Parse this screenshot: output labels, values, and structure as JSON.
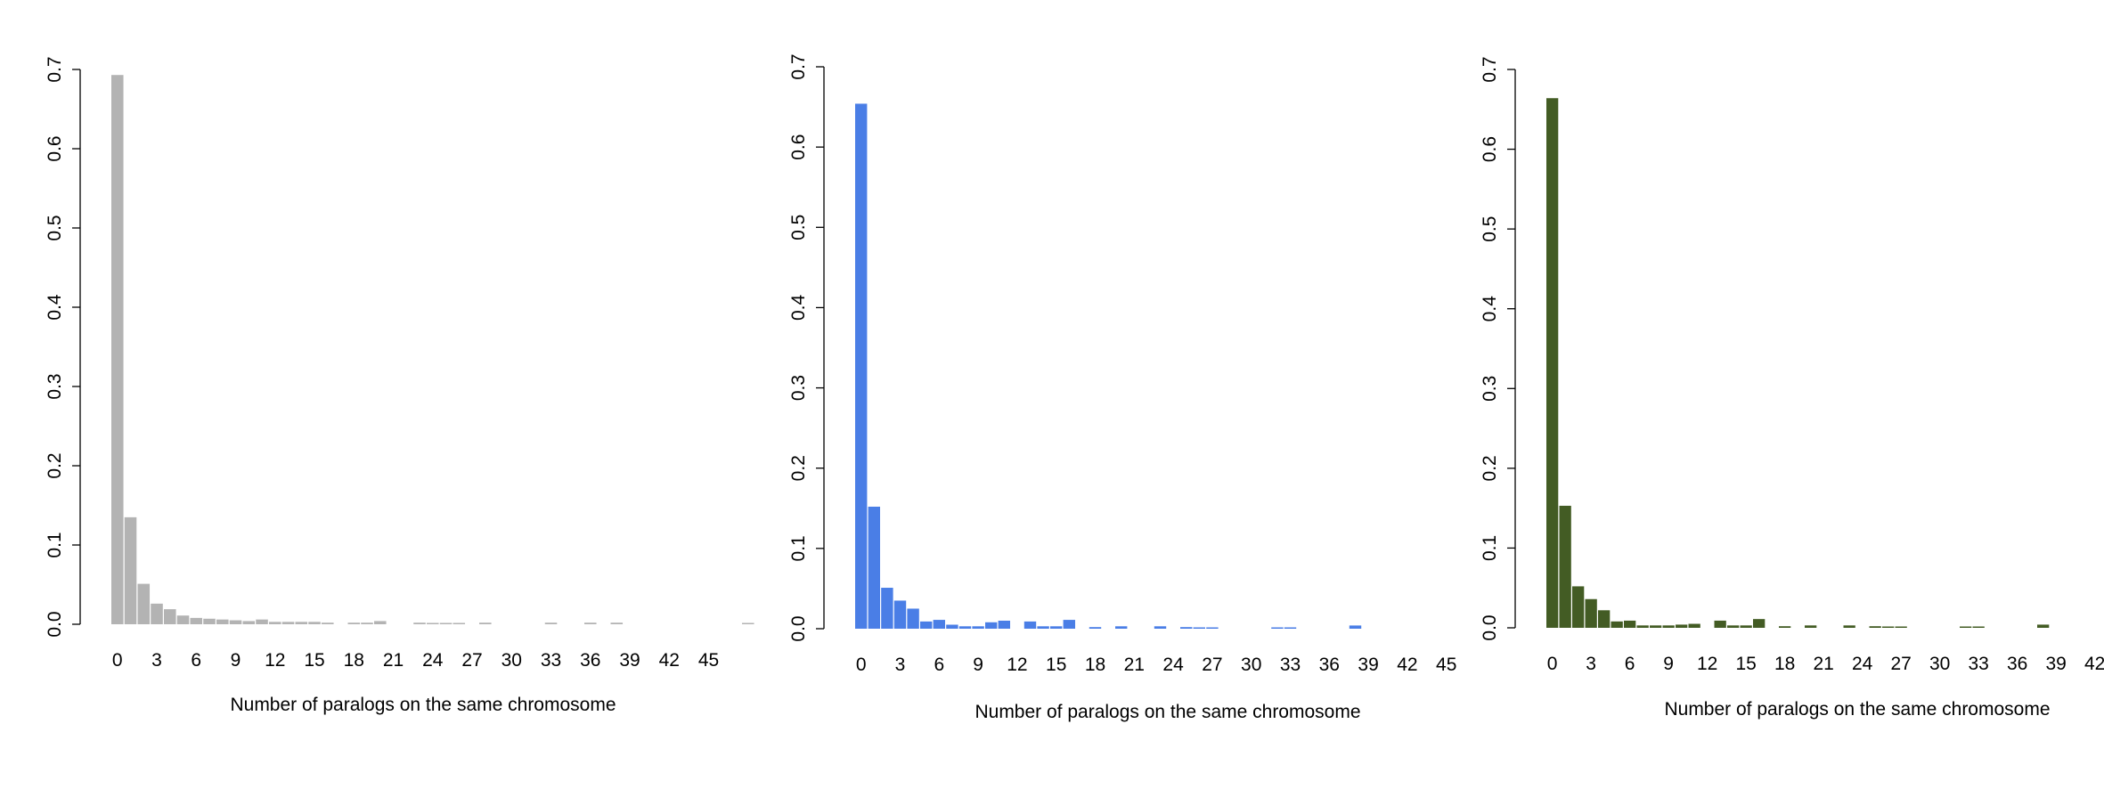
{
  "chart_data": [
    {
      "type": "bar",
      "xlabel": "Number of paralogs on the same chromosome",
      "ylabel": "",
      "color": "#b3b3b3",
      "ylim": [
        0,
        0.7
      ],
      "yticks": [
        "0.0",
        "0.1",
        "0.2",
        "0.3",
        "0.4",
        "0.5",
        "0.6",
        "0.7"
      ],
      "xtick_labels": [
        "0",
        "3",
        "6",
        "9",
        "12",
        "15",
        "18",
        "21",
        "24",
        "27",
        "30",
        "33",
        "36",
        "39",
        "42",
        "45"
      ],
      "categories": [
        0,
        1,
        2,
        3,
        4,
        5,
        6,
        7,
        8,
        9,
        10,
        11,
        12,
        13,
        14,
        15,
        16,
        17,
        18,
        19,
        20,
        21,
        22,
        23,
        24,
        25,
        26,
        27,
        28,
        29,
        30,
        31,
        32,
        33,
        34,
        35,
        36,
        37,
        38,
        39,
        40,
        41,
        42,
        43,
        44,
        45,
        46,
        47,
        48
      ],
      "values": [
        0.693,
        0.135,
        0.051,
        0.026,
        0.019,
        0.011,
        0.008,
        0.007,
        0.006,
        0.005,
        0.004,
        0.006,
        0.003,
        0.003,
        0.003,
        0.003,
        0.002,
        0,
        0.002,
        0.002,
        0.004,
        0,
        0,
        0.002,
        0.001,
        0.001,
        0.001,
        0,
        0.002,
        0,
        0,
        0,
        0,
        0.002,
        0,
        0,
        0.002,
        0,
        0.002,
        0,
        0,
        0,
        0,
        0,
        0,
        0,
        0,
        0,
        0.001
      ]
    },
    {
      "type": "bar",
      "xlabel": "Number of paralogs on the same chromosome",
      "ylabel": "",
      "color": "#4a7ee6",
      "ylim": [
        0,
        0.7
      ],
      "yticks": [
        "0.0",
        "0.1",
        "0.2",
        "0.3",
        "0.4",
        "0.5",
        "0.6",
        "0.7"
      ],
      "xtick_labels": [
        "0",
        "3",
        "6",
        "9",
        "12",
        "15",
        "18",
        "21",
        "24",
        "27",
        "30",
        "33",
        "36",
        "39",
        "42",
        "45"
      ],
      "categories": [
        0,
        1,
        2,
        3,
        4,
        5,
        6,
        7,
        8,
        9,
        10,
        11,
        12,
        13,
        14,
        15,
        16,
        17,
        18,
        19,
        20,
        21,
        22,
        23,
        24,
        25,
        26,
        27,
        28,
        29,
        30,
        31,
        32,
        33,
        34,
        35,
        36,
        37,
        38,
        39,
        40,
        41,
        42,
        43,
        44,
        45
      ],
      "values": [
        0.654,
        0.152,
        0.051,
        0.035,
        0.025,
        0.009,
        0.011,
        0.005,
        0.003,
        0.003,
        0.008,
        0.01,
        0,
        0.009,
        0.003,
        0.003,
        0.011,
        0,
        0.002,
        0,
        0.003,
        0,
        0,
        0.003,
        0,
        0.002,
        0.001,
        0.001,
        0,
        0,
        0,
        0,
        0.001,
        0.001,
        0,
        0,
        0,
        0,
        0.004,
        0,
        0,
        0,
        0,
        0,
        0,
        0
      ]
    },
    {
      "type": "bar",
      "xlabel": "Number of paralogs on the same chromosome",
      "ylabel": "",
      "color": "#435c24",
      "ylim": [
        0,
        0.7
      ],
      "yticks": [
        "0.0",
        "0.1",
        "0.2",
        "0.3",
        "0.4",
        "0.5",
        "0.6",
        "0.7"
      ],
      "xtick_labels": [
        "0",
        "3",
        "6",
        "9",
        "12",
        "15",
        "18",
        "21",
        "24",
        "27",
        "30",
        "33",
        "36",
        "39",
        "42"
      ],
      "categories": [
        0,
        1,
        2,
        3,
        4,
        5,
        6,
        7,
        8,
        9,
        10,
        11,
        12,
        13,
        14,
        15,
        16,
        17,
        18,
        19,
        20,
        21,
        22,
        23,
        24,
        25,
        26,
        27,
        28,
        29,
        30,
        31,
        32,
        33,
        34,
        35,
        36,
        37,
        38,
        39,
        40,
        41,
        42
      ],
      "values": [
        0.664,
        0.153,
        0.052,
        0.036,
        0.022,
        0.008,
        0.009,
        0.003,
        0.003,
        0.003,
        0.004,
        0.005,
        0,
        0.009,
        0.003,
        0.003,
        0.011,
        0,
        0.002,
        0,
        0.003,
        0,
        0,
        0.003,
        0,
        0.002,
        0.001,
        0.001,
        0,
        0,
        0,
        0,
        0.001,
        0.001,
        0,
        0,
        0,
        0,
        0.004,
        0,
        0,
        0,
        0
      ]
    }
  ]
}
